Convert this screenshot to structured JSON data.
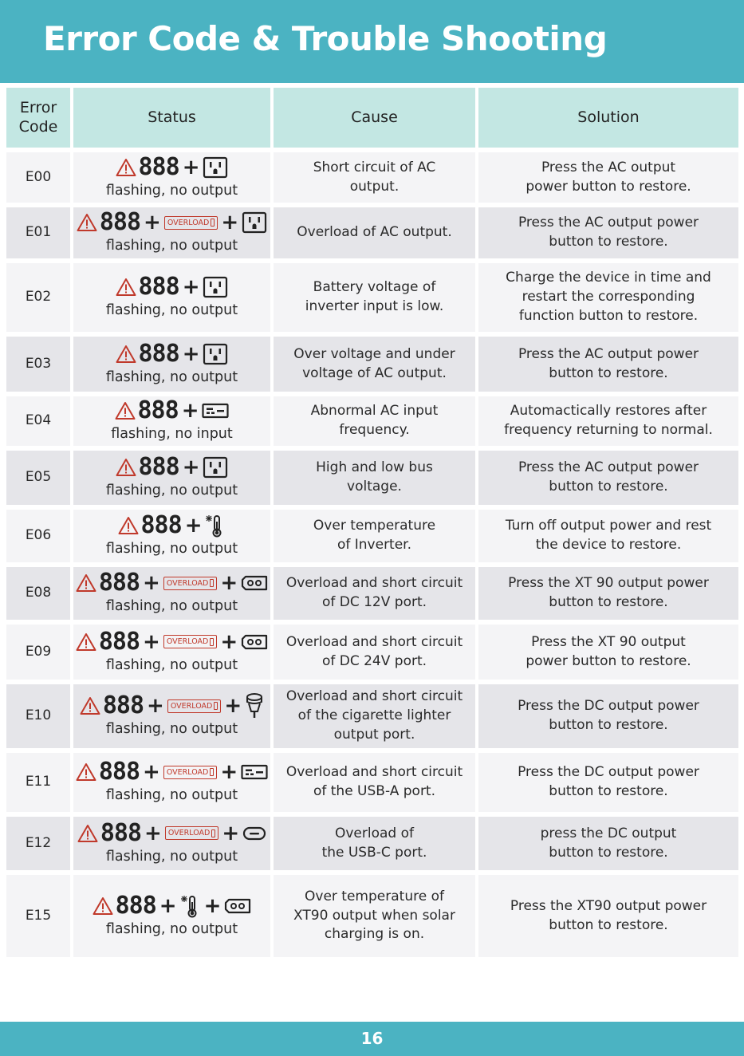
{
  "page": {
    "title": "Error Code & Trouble Shooting",
    "page_number": "16"
  },
  "table": {
    "headers": {
      "code": "Error Code",
      "status": "Status",
      "cause": "Cause",
      "solution": "Solution"
    },
    "digits": "888",
    "overload_label": "OVERLOAD",
    "rows": [
      {
        "code": "E00",
        "icons": [
          "warning-icon",
          "888",
          "ac-outlet-icon"
        ],
        "status": "flashing, no output",
        "cause": "Short circuit of AC\noutput.",
        "solution": "Press the AC output\npower button to restore."
      },
      {
        "code": "E01",
        "icons": [
          "warning-icon",
          "888",
          "overload-badge",
          "ac-outlet-icon"
        ],
        "status": "flashing, no output",
        "cause": "Overload of AC output.",
        "solution": "Press the AC output power\nbutton to restore."
      },
      {
        "code": "E02",
        "icons": [
          "warning-icon",
          "888",
          "ac-outlet-icon"
        ],
        "status": "flashing, no output",
        "cause": "Battery voltage of\ninverter input is low.",
        "solution": "Charge the device in time and\nrestart the corresponding\nfunction button to restore."
      },
      {
        "code": "E03",
        "icons": [
          "warning-icon",
          "888",
          "ac-outlet-icon"
        ],
        "status": "flashing, no output",
        "cause": "Over voltage and under\nvoltage of AC output.",
        "solution": "Press the AC output power\nbutton to restore."
      },
      {
        "code": "E04",
        "icons": [
          "warning-icon",
          "888",
          "dc-input-icon"
        ],
        "status": "flashing, no input",
        "cause": "Abnormal AC input\nfrequency.",
        "solution": "Automactically restores after\nfrequency returning to normal."
      },
      {
        "code": "E05",
        "icons": [
          "warning-icon",
          "888",
          "ac-outlet-icon"
        ],
        "status": "flashing, no output",
        "cause": "High and low bus\nvoltage.",
        "solution": "Press the AC output power\nbutton to restore."
      },
      {
        "code": "E06",
        "icons": [
          "warning-icon",
          "888",
          "thermometer-icon"
        ],
        "status": "flashing, no output",
        "cause": "Over temperature\nof Inverter.",
        "solution": "Turn off output power and rest\nthe device to restore."
      },
      {
        "code": "E08",
        "icons": [
          "warning-icon",
          "888",
          "overload-badge",
          "dc-port-icon"
        ],
        "status": "flashing, no output",
        "cause": "Overload and short circuit\nof DC 12V port.",
        "solution": "Press the XT 90 output power\nbutton to restore."
      },
      {
        "code": "E09",
        "icons": [
          "warning-icon",
          "888",
          "overload-badge",
          "dc-port-icon"
        ],
        "status": "flashing, no output",
        "cause": "Overload and short circuit\nof DC 24V port.",
        "solution": "Press the XT 90 output\npower button to restore."
      },
      {
        "code": "E10",
        "icons": [
          "warning-icon",
          "888",
          "overload-badge",
          "car-socket-icon"
        ],
        "status": "flashing, no output",
        "cause": "Overload and short circuit\nof the cigarette lighter\noutput port.",
        "solution": "Press the DC output power\nbutton to restore."
      },
      {
        "code": "E11",
        "icons": [
          "warning-icon",
          "888",
          "overload-badge",
          "usb-a-icon"
        ],
        "status": "flashing, no output",
        "cause": "Overload and short circuit\nof the USB-A port.",
        "solution": "Press the DC output power\nbutton to restore."
      },
      {
        "code": "E12",
        "icons": [
          "warning-icon",
          "888",
          "overload-badge",
          "usb-c-icon"
        ],
        "status": "flashing, no output",
        "cause": "Overload of\nthe USB-C port.",
        "solution": "press the DC output\nbutton to restore."
      },
      {
        "code": "E15",
        "icons": [
          "warning-icon",
          "888",
          "thermometer-icon",
          "dc-port-icon"
        ],
        "status": "flashing, no output",
        "cause": "Over temperature of\nXT90 output when solar\ncharging is on.",
        "solution": "Press the XT90 output power\nbutton to restore."
      }
    ]
  },
  "colors": {
    "header_bar": "#4bb3c2",
    "table_header": "#c3e7e3",
    "row_light": "#f4f4f6",
    "row_dark": "#e5e5e9",
    "warning_red": "#c0392b"
  }
}
